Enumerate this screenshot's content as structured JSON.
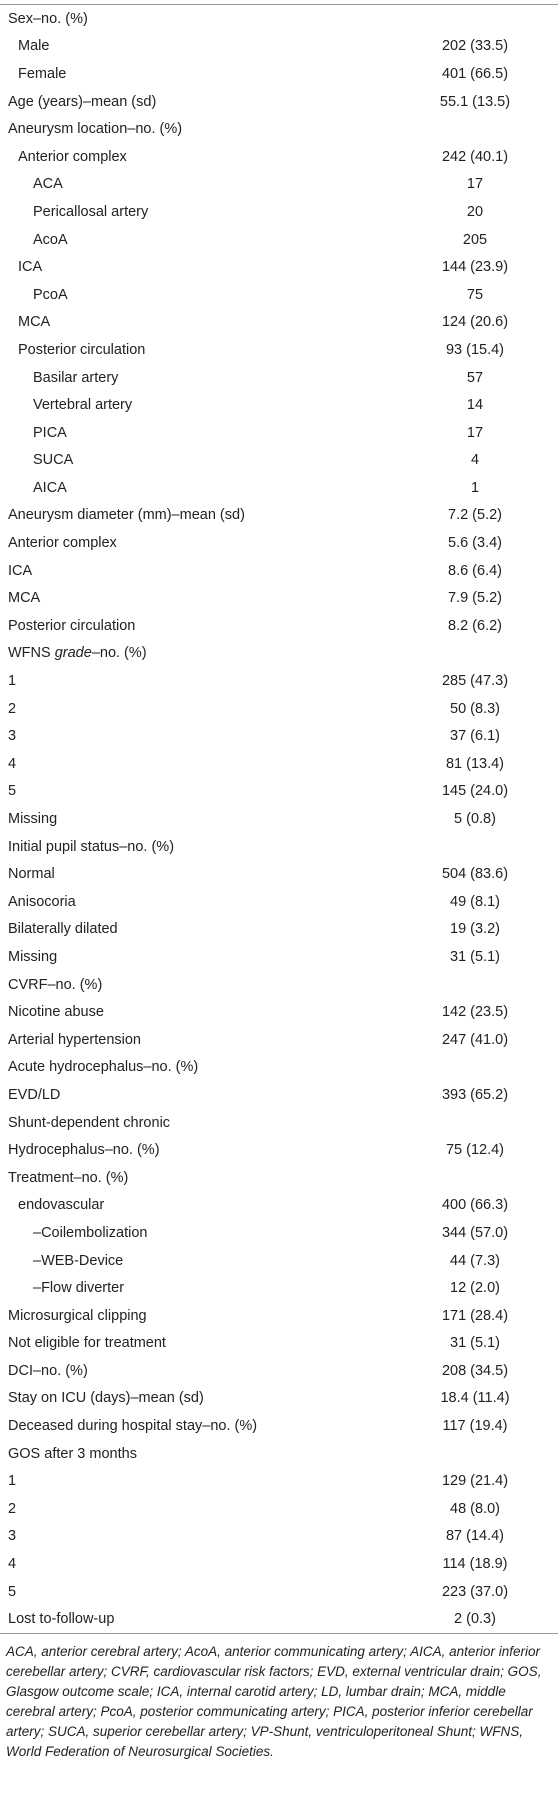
{
  "table": {
    "rows": [
      [
        "Sex–no. (%)"
      ],
      [
        "Male",
        "202 (33.5)"
      ],
      [
        "Female",
        "401 (66.5)"
      ],
      [
        "Age (years)–mean (sd)",
        "55.1 (13.5)"
      ],
      [
        "Aneurysm location–no. (%)"
      ],
      [
        "Anterior complex",
        "242 (40.1)"
      ],
      [
        "ACA",
        "17"
      ],
      [
        "Pericallosal artery",
        "20"
      ],
      [
        "AcoA",
        "205"
      ],
      [
        "ICA",
        "144 (23.9)"
      ],
      [
        "PcoA",
        "75"
      ],
      [
        "MCA",
        "124 (20.6)"
      ],
      [
        "Posterior circulation",
        "93 (15.4)"
      ],
      [
        "Basilar artery",
        "57"
      ],
      [
        "Vertebral artery",
        "14"
      ],
      [
        "PICA",
        "17"
      ],
      [
        "SUCA",
        "4"
      ],
      [
        "AICA",
        "1"
      ],
      [
        "Aneurysm diameter (mm)–mean (sd)",
        "7.2 (5.2)"
      ],
      [
        "Anterior complex",
        "5.6 (3.4)"
      ],
      [
        "ICA",
        "8.6 (6.4)"
      ],
      [
        "MCA",
        "7.9 (5.2)"
      ],
      [
        "Posterior circulation",
        "8.2 (6.2)"
      ],
      [
        [
          "WFNS ",
          "grade",
          "–no. (%)"
        ]
      ],
      [
        "1",
        "285 (47.3)"
      ],
      [
        "2",
        "50 (8.3)"
      ],
      [
        "3",
        "37 (6.1)"
      ],
      [
        "4",
        "81 (13.4)"
      ],
      [
        "5",
        "145 (24.0)"
      ],
      [
        "Missing",
        "5 (0.8)"
      ],
      [
        "Initial pupil status–no. (%)"
      ],
      [
        "Normal",
        "504 (83.6)"
      ],
      [
        "Anisocoria",
        "49 (8.1)"
      ],
      [
        "Bilaterally dilated",
        "19 (3.2)"
      ],
      [
        "Missing",
        "31 (5.1)"
      ],
      [
        "CVRF–no. (%)"
      ],
      [
        "Nicotine abuse",
        "142 (23.5)"
      ],
      [
        "Arterial hypertension",
        "247 (41.0)"
      ],
      [
        "Acute hydrocephalus–no. (%)"
      ],
      [
        "EVD/LD",
        "393 (65.2)"
      ],
      [
        "Shunt-dependent chronic"
      ],
      [
        "Hydrocephalus–no. (%)",
        "75 (12.4)"
      ],
      [
        "Treatment–no. (%)"
      ],
      [
        "endovascular",
        "400 (66.3)"
      ],
      [
        "–Coilembolization",
        "344 (57.0)"
      ],
      [
        "–WEB-Device",
        "44 (7.3)"
      ],
      [
        "–Flow diverter",
        "12 (2.0)"
      ],
      [
        "Microsurgical clipping",
        "171 (28.4)"
      ],
      [
        "Not eligible for treatment",
        "31 (5.1)"
      ],
      [
        "DCI–no. (%)",
        "208 (34.5)"
      ],
      [
        "Stay on ICU (days)–mean (sd)",
        "18.4 (11.4)"
      ],
      [
        "Deceased during hospital stay–no. (%)",
        "117 (19.4)"
      ],
      [
        "GOS after 3 months"
      ],
      [
        "1",
        "129 (21.4)"
      ],
      [
        "2",
        "48 (8.0)"
      ],
      [
        "3",
        "87 (14.4)"
      ],
      [
        "4",
        "114 (18.9)"
      ],
      [
        "5",
        "223 (37.0)"
      ],
      [
        "Lost to-follow-up",
        "2 (0.3)"
      ]
    ]
  },
  "footnote": "ACA, anterior cerebral artery; AcoA, anterior communicating artery; AICA, anterior inferior cerebellar artery; CVRF, cardiovascular risk factors; EVD, external ventricular drain; GOS, Glasgow outcome scale; ICA, internal carotid artery; LD, lumbar drain; MCA, middle cerebral artery; PcoA, posterior communicating artery; PICA, posterior inferior cerebellar artery; SUCA, superior cerebellar artery; VP-Shunt, ventriculoperitoneal Shunt; WFNS, World Federation of Neurosurgical Societies."
}
